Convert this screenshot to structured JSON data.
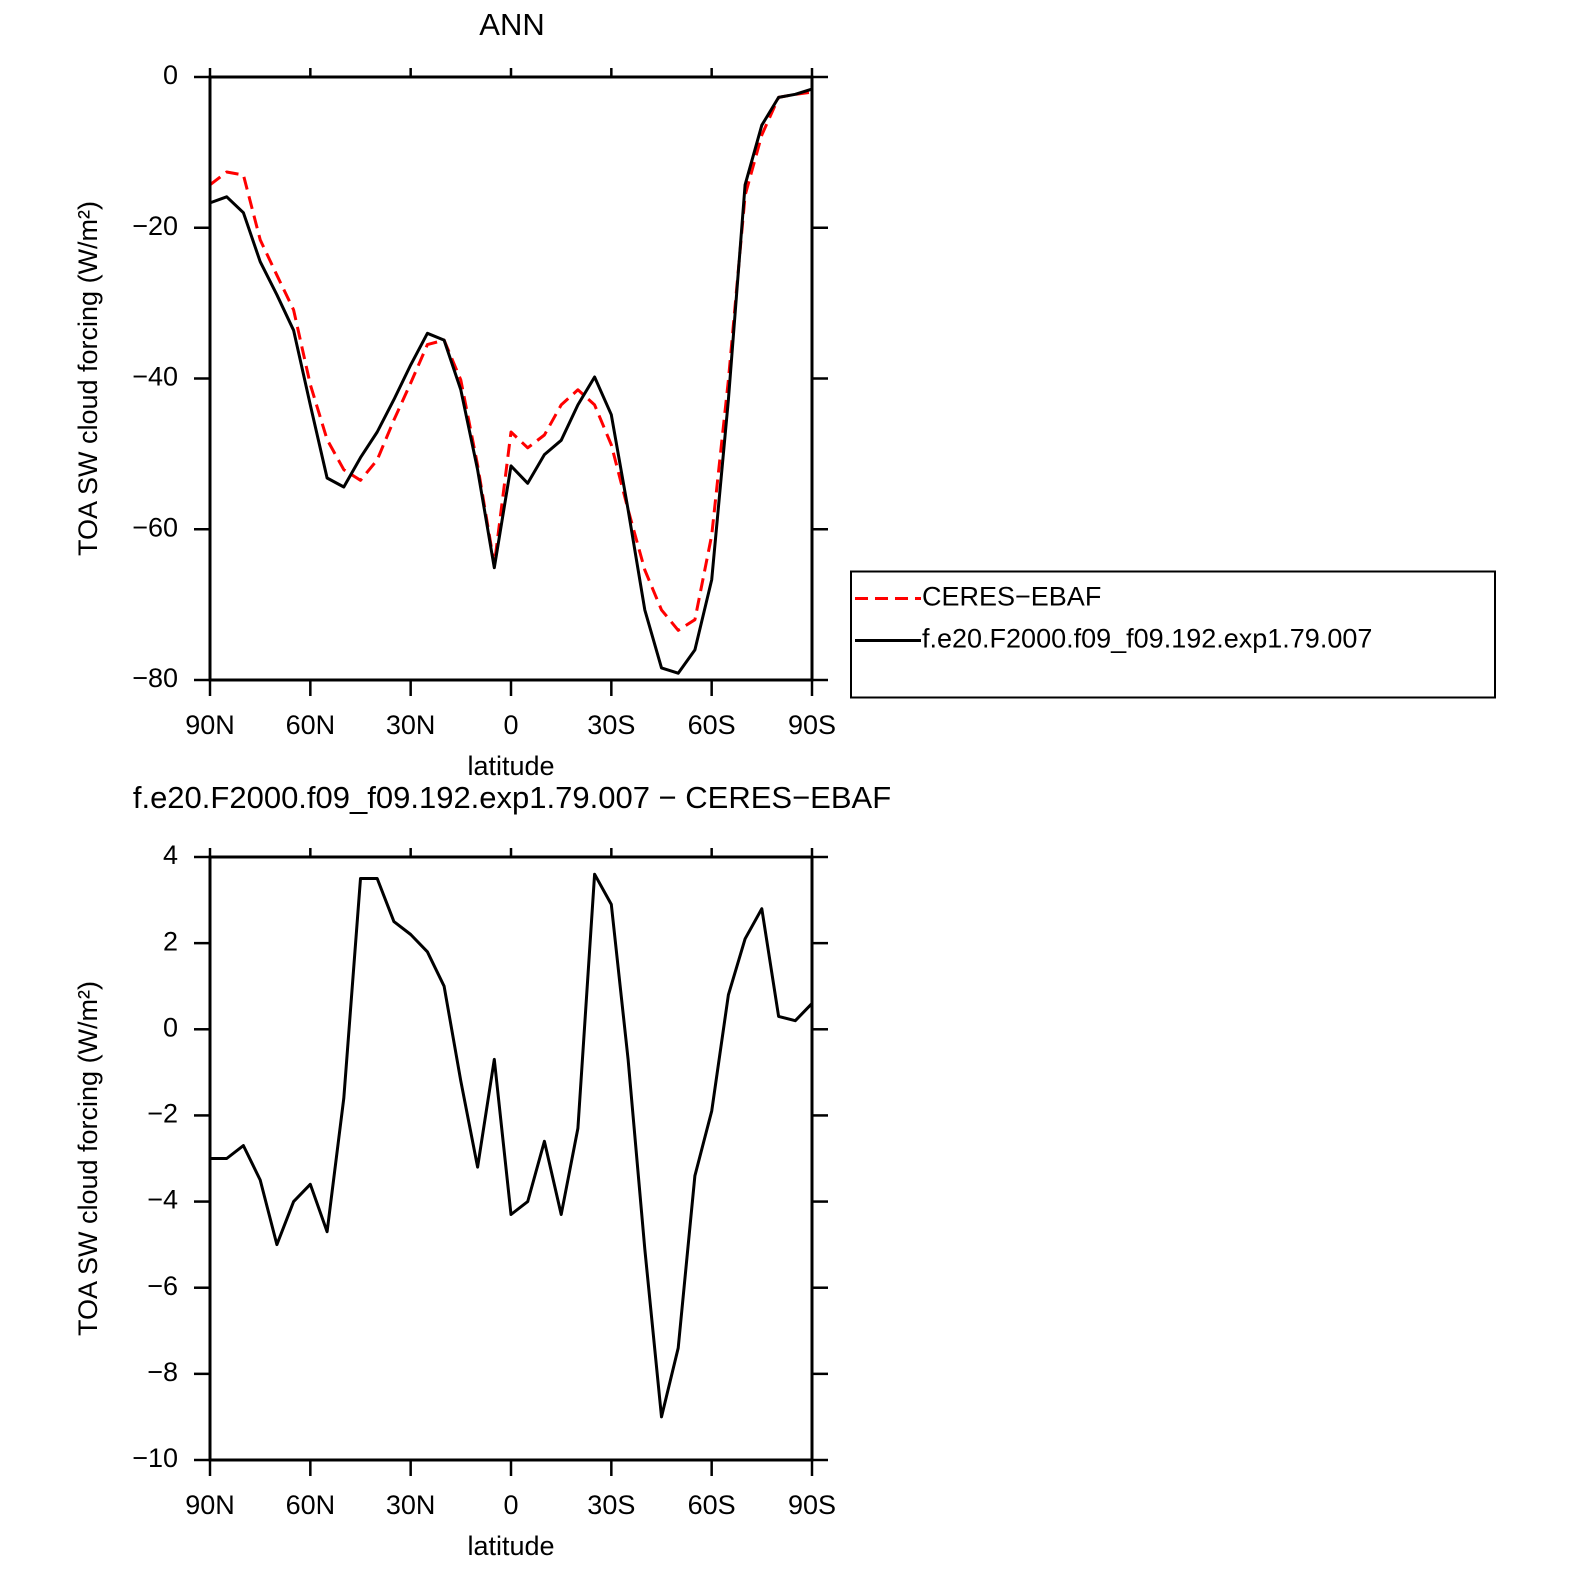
{
  "chart_data": [
    {
      "type": "line",
      "title": "ANN",
      "xlabel": "latitude",
      "ylabel": "TOA SW cloud forcing (W/m²)",
      "x": [
        90,
        85,
        80,
        75,
        70,
        65,
        60,
        55,
        50,
        45,
        40,
        35,
        30,
        25,
        20,
        15,
        10,
        5,
        0,
        -5,
        -10,
        -15,
        -20,
        -25,
        -30,
        -35,
        -40,
        -45,
        -50,
        -55,
        -60,
        -65,
        -70,
        -75,
        -80,
        -85,
        -90
      ],
      "series": [
        {
          "name": "CERES−EBAF",
          "color": "#ff0000",
          "dash": true,
          "values": [
            -14.3,
            -12.6,
            -13,
            -21.6,
            -26.3,
            -30.9,
            -40.8,
            -48.1,
            -52.1,
            -53.5,
            -50.8,
            -45.5,
            -40.6,
            -35.5,
            -34.9,
            -40.2,
            -51.5,
            -64.7,
            -47.1,
            -49.2,
            -47.5,
            -43.5,
            -41.5,
            -43.5,
            -48.8,
            -57.4,
            -65.4,
            -70.7,
            -73.4,
            -72,
            -60.8,
            -40.2,
            -15.7,
            -7.7,
            -2.7,
            -2.3,
            -2
          ]
        },
        {
          "name": "f.e20.F2000.f09_f09.192.exp1.79.007",
          "color": "#000000",
          "dash": false,
          "values": [
            -16.7,
            -15.9,
            -18,
            -24.5,
            -28.9,
            -33.6,
            -43.5,
            -53.2,
            -54.4,
            -50.5,
            -47.1,
            -42.8,
            -38.2,
            -34,
            -34.9,
            -41.5,
            -52.1,
            -65.1,
            -51.6,
            -53.9,
            -50.1,
            -48.2,
            -43.5,
            -39.8,
            -44.8,
            -57.4,
            -70.7,
            -78.4,
            -79.1,
            -76,
            -66.7,
            -42.8,
            -14.3,
            -6.4,
            -2.7,
            -2.3,
            -1.6
          ]
        }
      ],
      "xlim": [
        90,
        -90
      ],
      "xticks": [
        {
          "value": 90,
          "label": "90N"
        },
        {
          "value": 60,
          "label": "60N"
        },
        {
          "value": 30,
          "label": "30N"
        },
        0,
        {
          "value": -30,
          "label": "30S"
        },
        {
          "value": -60,
          "label": "60S"
        },
        {
          "value": -90,
          "label": "90S"
        }
      ],
      "ylim": [
        -80,
        0
      ],
      "yticks": [
        {
          "value": -80,
          "label": "−80"
        },
        {
          "value": -60,
          "label": "−60"
        },
        {
          "value": -40,
          "label": "−40"
        },
        {
          "value": -20,
          "label": "−20"
        },
        0
      ],
      "legend": "right"
    },
    {
      "type": "line",
      "title": "f.e20.F2000.f09_f09.192.exp1.79.007 − CERES−EBAF",
      "xlabel": "latitude",
      "ylabel": "TOA SW cloud forcing (W/m²)",
      "x": [
        90,
        85,
        80,
        75,
        70,
        65,
        60,
        55,
        50,
        45,
        40,
        35,
        30,
        25,
        20,
        15,
        10,
        5,
        0,
        -5,
        -10,
        -15,
        -20,
        -25,
        -30,
        -35,
        -40,
        -45,
        -50,
        -55,
        -60,
        -65,
        -70,
        -75,
        -80,
        -85,
        -90
      ],
      "series": [
        {
          "color": "#000000",
          "dash": false,
          "values": [
            -3.0,
            -3.0,
            -2.7,
            -3.5,
            -5.0,
            -4.0,
            -3.6,
            -4.7,
            -1.6,
            3.5,
            3.5,
            2.5,
            2.2,
            1.8,
            1.0,
            -1.2,
            -3.2,
            -0.7,
            -4.3,
            -4.0,
            -2.6,
            -4.3,
            -2.3,
            3.6,
            2.9,
            -0.7,
            -5.1,
            -9.0,
            -7.4,
            -3.4,
            -1.9,
            0.8,
            2.1,
            2.8,
            0.3,
            0.2,
            0.6
          ]
        }
      ],
      "xlim": [
        90,
        -90
      ],
      "xticks": [
        {
          "value": 90,
          "label": "90N"
        },
        {
          "value": 60,
          "label": "60N"
        },
        {
          "value": 30,
          "label": "30N"
        },
        0,
        {
          "value": -30,
          "label": "30S"
        },
        {
          "value": -60,
          "label": "60S"
        },
        {
          "value": -90,
          "label": "90S"
        }
      ],
      "ylim": [
        -10,
        4
      ],
      "yticks": [
        {
          "value": -10,
          "label": "−10"
        },
        {
          "value": -8,
          "label": "−8"
        },
        {
          "value": -6,
          "label": "−6"
        },
        {
          "value": -4,
          "label": "−4"
        },
        {
          "value": -2,
          "label": "−2"
        },
        0,
        2,
        4
      ]
    }
  ]
}
